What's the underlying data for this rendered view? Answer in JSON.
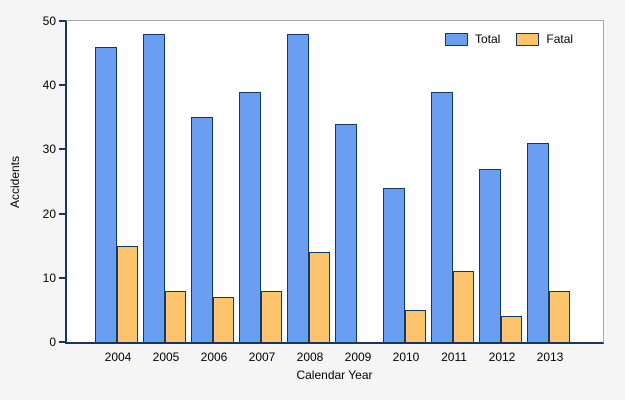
{
  "chart_data": {
    "type": "bar",
    "title": "",
    "xlabel": "Calendar Year",
    "ylabel": "Accidents",
    "categories": [
      "2004",
      "2005",
      "2006",
      "2007",
      "2008",
      "2009",
      "2010",
      "2011",
      "2012",
      "2013"
    ],
    "series": [
      {
        "name": "Total",
        "color": "#6A9EF1",
        "values": [
          46,
          48,
          35,
          39,
          48,
          34,
          24,
          39,
          27,
          31
        ]
      },
      {
        "name": "Fatal",
        "color": "#FBC46D",
        "values": [
          15,
          8,
          7,
          8,
          14,
          0,
          5,
          11,
          4,
          8
        ]
      }
    ],
    "ylim": [
      0,
      50
    ],
    "yticks": [
      0,
      10,
      20,
      30,
      40,
      50
    ],
    "legend": [
      "Total",
      "Fatal"
    ],
    "legend_position": "top-right",
    "grid": false,
    "colors": {
      "bar_border": "#17375E",
      "axis": "#17375E",
      "frame": "#A6A6A6",
      "plot_bg": "#FFFFFF",
      "page_bg": "#F5F5F5",
      "text": "#000000"
    }
  }
}
